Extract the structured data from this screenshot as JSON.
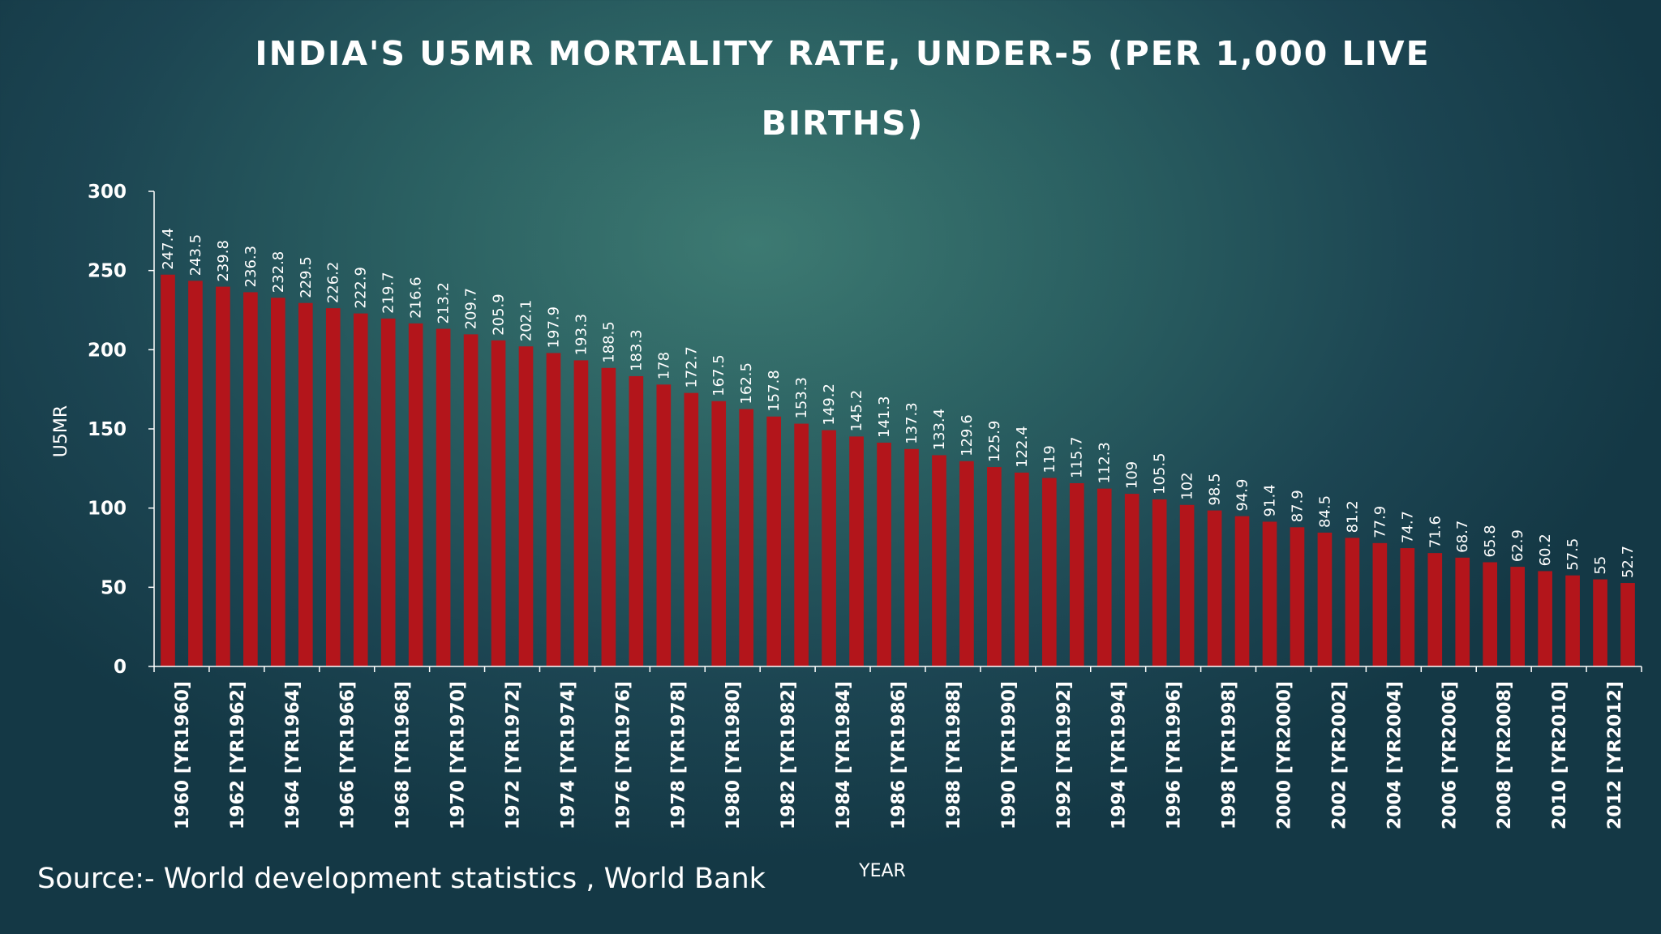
{
  "title_line1": "INDIA'S U5MR MORTALITY RATE, UNDER-5 (PER 1,000 LIVE",
  "title_line2": "BIRTHS)",
  "source": "Source:- World development statistics , World Bank",
  "colors": {
    "bar": "#b3151b",
    "axis": "#ffffff",
    "text": "#ffffff"
  },
  "chart_data": {
    "type": "bar",
    "title": "INDIA'S U5MR MORTALITY RATE, UNDER-5 (PER 1,000 LIVE BIRTHS)",
    "xlabel": "YEAR",
    "ylabel": "U5MR",
    "ylim": [
      0,
      300
    ],
    "yticks": [
      0,
      50,
      100,
      150,
      200,
      250,
      300
    ],
    "grid": false,
    "legend": "none",
    "categories": [
      "1960 [YR1960]",
      "1961 [YR1961]",
      "1962 [YR1962]",
      "1963 [YR1963]",
      "1964 [YR1964]",
      "1965 [YR1965]",
      "1966 [YR1966]",
      "1967 [YR1967]",
      "1968 [YR1968]",
      "1969 [YR1969]",
      "1970 [YR1970]",
      "1971 [YR1971]",
      "1972 [YR1972]",
      "1973 [YR1973]",
      "1974 [YR1974]",
      "1975 [YR1975]",
      "1976 [YR1976]",
      "1977 [YR1977]",
      "1978 [YR1978]",
      "1979 [YR1979]",
      "1980 [YR1980]",
      "1981 [YR1981]",
      "1982 [YR1982]",
      "1983 [YR1983]",
      "1984 [YR1984]",
      "1985 [YR1985]",
      "1986 [YR1986]",
      "1987 [YR1987]",
      "1988 [YR1988]",
      "1989 [YR1989]",
      "1990 [YR1990]",
      "1991 [YR1991]",
      "1992 [YR1992]",
      "1993 [YR1993]",
      "1994 [YR1994]",
      "1995 [YR1995]",
      "1996 [YR1996]",
      "1997 [YR1997]",
      "1998 [YR1998]",
      "1999 [YR1999]",
      "2000 [YR2000]",
      "2001 [YR2001]",
      "2002 [YR2002]",
      "2003 [YR2003]",
      "2004 [YR2004]",
      "2005 [YR2005]",
      "2006 [YR2006]",
      "2007 [YR2007]",
      "2008 [YR2008]",
      "2009 [YR2009]",
      "2010 [YR2010]",
      "2011 [YR2011]",
      "2012 [YR2012]",
      "2013 [YR2013]"
    ],
    "shown_category_labels": [
      "1960 [YR1960]",
      "1962 [YR1962]",
      "1964 [YR1964]",
      "1966 [YR1966]",
      "1968 [YR1968]",
      "1970 [YR1970]",
      "1972 [YR1972]",
      "1974 [YR1974]",
      "1976 [YR1976]",
      "1978 [YR1978]",
      "1980 [YR1980]",
      "1982 [YR1982]",
      "1984 [YR1984]",
      "1986 [YR1986]",
      "1988 [YR1988]",
      "1990 [YR1990]",
      "1992 [YR1992]",
      "1994 [YR1994]",
      "1996 [YR1996]",
      "1998 [YR1998]",
      "2000 [YR2000]",
      "2002 [YR2002]",
      "2004 [YR2004]",
      "2006 [YR2006]",
      "2008 [YR2008]",
      "2010 [YR2010]",
      "2012 [YR2012]"
    ],
    "values": [
      247.4,
      243.5,
      239.8,
      236.3,
      232.8,
      229.5,
      226.2,
      222.9,
      219.7,
      216.6,
      213.2,
      209.7,
      205.9,
      202.1,
      197.9,
      193.3,
      188.5,
      183.3,
      178,
      172.7,
      167.5,
      162.5,
      157.8,
      153.3,
      149.2,
      145.2,
      141.3,
      137.3,
      133.4,
      129.6,
      125.9,
      122.4,
      119,
      115.7,
      112.3,
      109,
      105.5,
      102,
      98.5,
      94.9,
      91.4,
      87.9,
      84.5,
      81.2,
      77.9,
      74.7,
      71.6,
      68.7,
      65.8,
      62.9,
      60.2,
      57.5,
      55,
      52.7
    ]
  }
}
